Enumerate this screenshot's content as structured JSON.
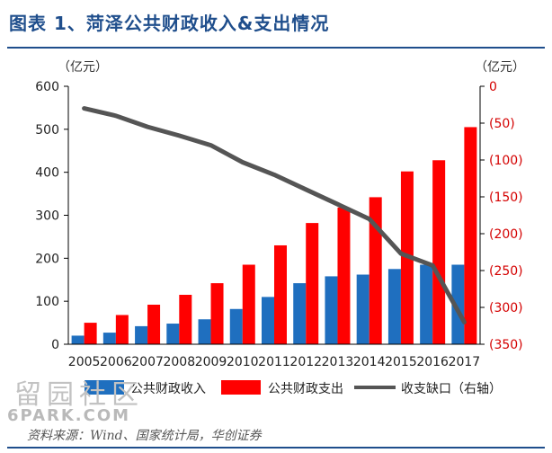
{
  "title": "图表 1、菏泽公共财政收入&支出情况",
  "unit_left": "（亿元）",
  "unit_right": "（亿元）",
  "source": "资料来源：Wind、国家统计局，华创证券",
  "watermark": {
    "cn": "留园社区",
    "en": "6PARK.COM"
  },
  "colors": {
    "revenue": "#1f6fbf",
    "expenditure": "#ff0000",
    "deficit": "#555555",
    "title": "#1f4e8c"
  },
  "chart_data": {
    "type": "bar",
    "title": "图表 1、菏泽公共财政收入&支出情况",
    "categories": [
      "2005",
      "2006",
      "2007",
      "2008",
      "2009",
      "2010",
      "2011",
      "2012",
      "2013",
      "2014",
      "2015",
      "2016",
      "2017"
    ],
    "left_axis": {
      "ylim": [
        0,
        600
      ],
      "ticks": [
        "0",
        "100",
        "200",
        "300",
        "400",
        "500",
        "600"
      ]
    },
    "right_axis": {
      "ylim": [
        -350,
        0
      ],
      "ticks": [
        "0",
        "(50)",
        "(100)",
        "(150)",
        "(200)",
        "(250)",
        "(300)",
        "(350)"
      ]
    },
    "series": [
      {
        "name": "公共财政收入",
        "type": "bar",
        "axis": "left",
        "values": [
          20,
          27,
          42,
          48,
          58,
          82,
          110,
          142,
          158,
          162,
          175,
          185,
          185
        ]
      },
      {
        "name": "公共财政支出",
        "type": "bar",
        "axis": "left",
        "values": [
          50,
          68,
          92,
          115,
          142,
          185,
          230,
          282,
          318,
          342,
          402,
          428,
          505
        ]
      },
      {
        "name": "收支缺口（右轴）",
        "type": "line",
        "axis": "right",
        "values": [
          -30,
          -40,
          -55,
          -67,
          -80,
          -103,
          -120,
          -140,
          -160,
          -180,
          -227,
          -243,
          -320
        ]
      }
    ],
    "legend": [
      "公共财政收入",
      "公共财政支出",
      "收支缺口（右轴）"
    ],
    "legend_position": "bottom",
    "grid": false
  }
}
